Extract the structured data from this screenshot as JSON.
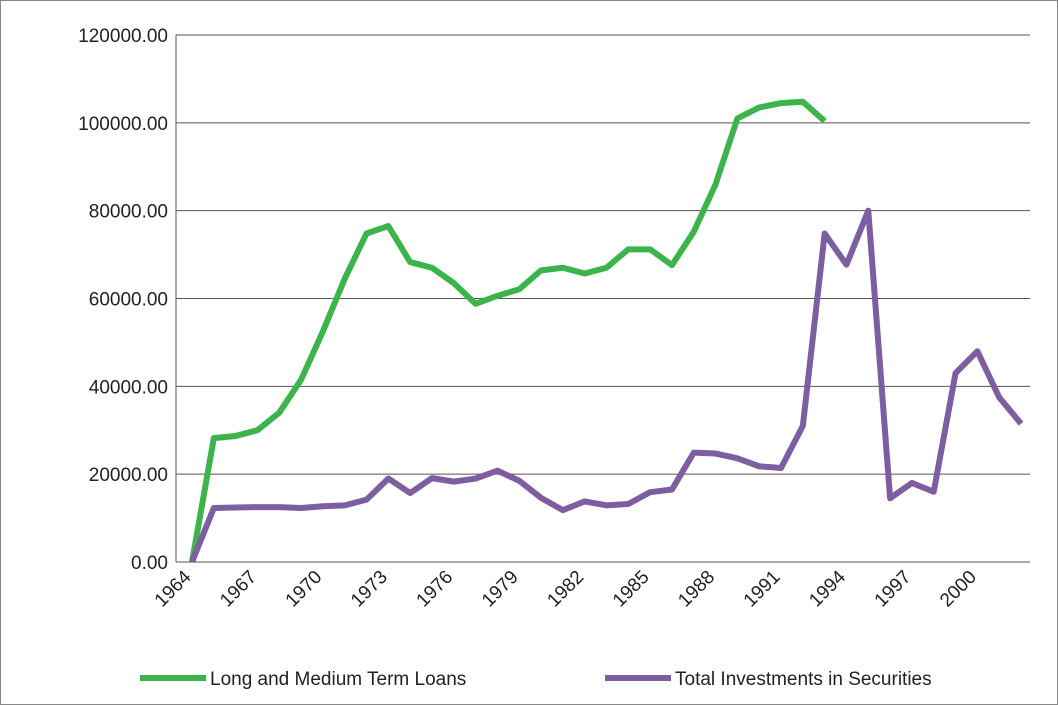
{
  "chart_data": {
    "type": "line",
    "categories": [
      "1964",
      null,
      null,
      "1967",
      null,
      null,
      "1970",
      null,
      null,
      "1973",
      null,
      null,
      "1976",
      null,
      null,
      "1979",
      null,
      null,
      "1982",
      null,
      null,
      "1985",
      null,
      null,
      "1988",
      null,
      null,
      "1991",
      null,
      null,
      "1994",
      null,
      null,
      "1997",
      null,
      null,
      "2000",
      null,
      null
    ],
    "series": [
      {
        "name": "Long and Medium Term Loans",
        "color": "#3cb44b",
        "values": [
          0,
          28200,
          28700,
          30000,
          34000,
          41500,
          52500,
          64500,
          74800,
          76500,
          68300,
          67000,
          63500,
          58800,
          60600,
          62100,
          66400,
          67000,
          65700,
          67000,
          71200,
          71200,
          67600,
          75200,
          86000,
          101000,
          103500,
          104500,
          104800,
          100400,
          null,
          null,
          null,
          null,
          null,
          null,
          null,
          null,
          null
        ]
      },
      {
        "name": "Total Investments in Securities",
        "color": "#7d5ea0",
        "values": [
          0,
          12300,
          12400,
          12500,
          12500,
          12300,
          12700,
          12900,
          14200,
          19000,
          15700,
          19100,
          18300,
          19000,
          20800,
          18500,
          14600,
          11800,
          13800,
          12900,
          13200,
          15900,
          16500,
          24900,
          24700,
          23600,
          21800,
          21400,
          31000,
          74800,
          67700,
          80000,
          14500,
          18000,
          16000,
          43000,
          48000,
          37500,
          31500
        ]
      }
    ],
    "ylim": [
      0,
      120000
    ],
    "yticks": [
      {
        "value": 0,
        "label": "0.00"
      },
      {
        "value": 20000,
        "label": "20000.00"
      },
      {
        "value": 40000,
        "label": "40000.00"
      },
      {
        "value": 60000,
        "label": "60000.00"
      },
      {
        "value": 80000,
        "label": "80000.00"
      },
      {
        "value": 100000,
        "label": "100000.00"
      },
      {
        "value": 120000,
        "label": "120000.00"
      }
    ],
    "grid": true,
    "legend": "bottom"
  }
}
